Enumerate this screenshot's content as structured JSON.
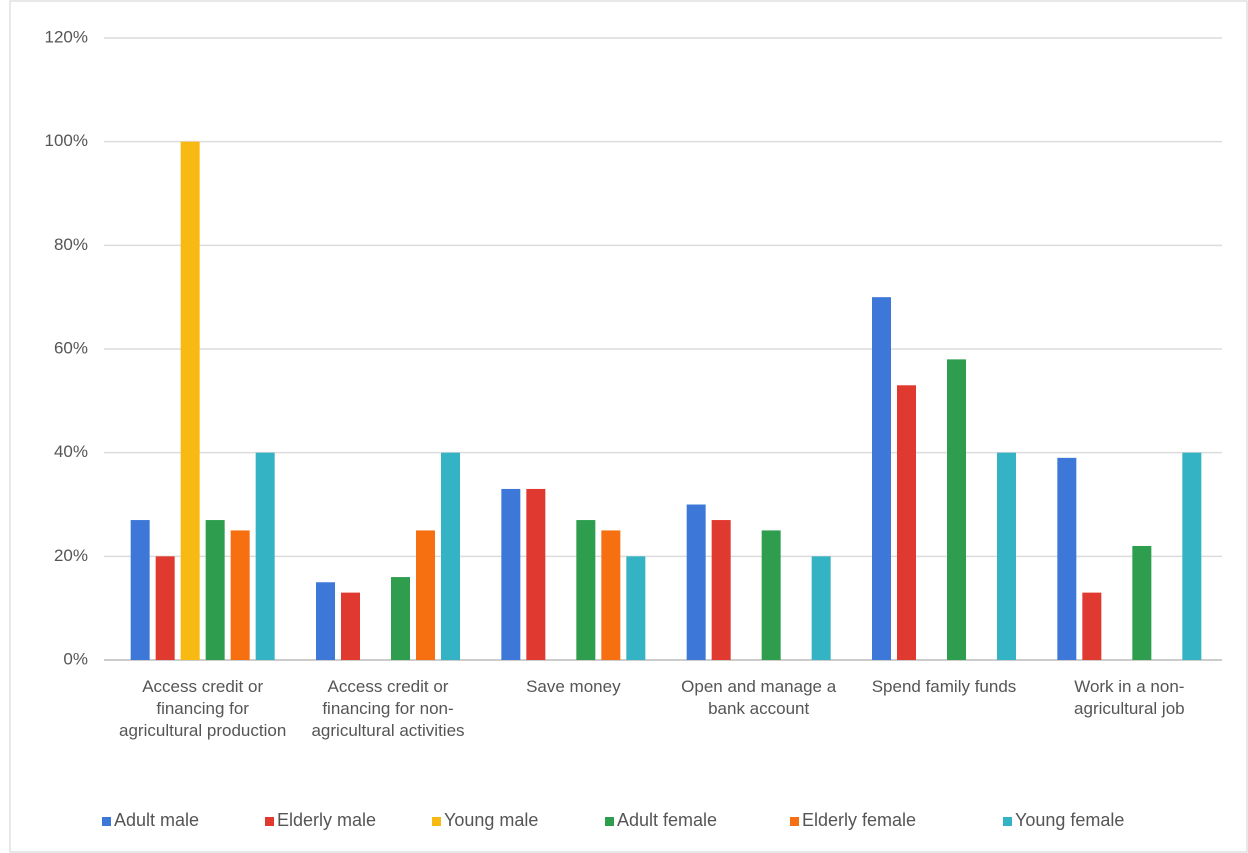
{
  "chart_data": {
    "type": "bar",
    "categories": [
      "Access credit or financing for agricultural production",
      "Access credit or financing for non-agricultural activities",
      "Save money",
      "Open and manage a bank account",
      "Spend family funds",
      "Work in a non-agricultural job"
    ],
    "series": [
      {
        "name": "Adult male",
        "color": "#3d78d8",
        "values": [
          27,
          15,
          33,
          30,
          70,
          39
        ]
      },
      {
        "name": "Elderly male",
        "color": "#e0392f",
        "values": [
          20,
          13,
          33,
          27,
          53,
          13
        ]
      },
      {
        "name": "Young male",
        "color": "#f8b912",
        "values": [
          100,
          null,
          null,
          null,
          null,
          null
        ]
      },
      {
        "name": "Adult female",
        "color": "#2e9e4e",
        "values": [
          27,
          16,
          27,
          25,
          58,
          22
        ]
      },
      {
        "name": "Elderly female",
        "color": "#f66f10",
        "values": [
          25,
          25,
          25,
          null,
          null,
          null
        ]
      },
      {
        "name": "Young female",
        "color": "#33b3c3",
        "values": [
          40,
          40,
          20,
          20,
          40,
          40
        ]
      }
    ],
    "ylim": [
      0,
      120
    ],
    "yticks": [
      {
        "value": 0,
        "label": "0%"
      },
      {
        "value": 20,
        "label": "20%"
      },
      {
        "value": 40,
        "label": "40%"
      },
      {
        "value": 60,
        "label": "60%"
      },
      {
        "value": 80,
        "label": "80%"
      },
      {
        "value": 100,
        "label": "100%"
      },
      {
        "value": 120,
        "label": "120%"
      }
    ],
    "grid": true,
    "legend": "bottom"
  }
}
